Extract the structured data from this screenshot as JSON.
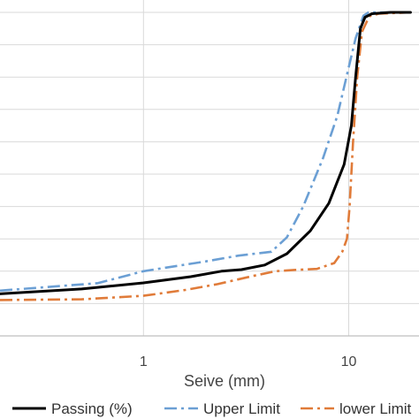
{
  "chart_data": {
    "type": "line",
    "title": "",
    "xlabel": "Seive (mm)",
    "ylabel": "",
    "x_scale": "log",
    "xlim": [
      0.2,
      22
    ],
    "ylim": [
      0,
      100
    ],
    "x_ticks": [
      {
        "value": 1,
        "label": "1"
      },
      {
        "value": 10,
        "label": "10"
      }
    ],
    "grid": true,
    "legend_position": "bottom",
    "series": [
      {
        "name": "Passing (%)",
        "color": "#000000",
        "style": "solid",
        "points": [
          [
            0.2,
            13
          ],
          [
            0.5,
            14.5
          ],
          [
            1,
            16.4
          ],
          [
            1.7,
            18.3
          ],
          [
            2.4,
            20
          ],
          [
            3,
            20.5
          ],
          [
            3.9,
            21.9
          ],
          [
            5,
            25.4
          ],
          [
            6.5,
            32.5
          ],
          [
            8,
            41
          ],
          [
            9.5,
            53
          ],
          [
            10.3,
            65
          ],
          [
            10.8,
            80
          ],
          [
            11.4,
            95
          ],
          [
            12,
            98.5
          ],
          [
            13,
            99.6
          ],
          [
            16,
            100
          ],
          [
            20,
            100
          ]
        ]
      },
      {
        "name": "Upper Limit",
        "color": "#6b9fd4",
        "style": "dash-dot",
        "points": [
          [
            0.2,
            14
          ],
          [
            0.6,
            16.3
          ],
          [
            1,
            20
          ],
          [
            2,
            23
          ],
          [
            2.9,
            24.8
          ],
          [
            4.2,
            26
          ],
          [
            5,
            30.5
          ],
          [
            6,
            40
          ],
          [
            7.5,
            55
          ],
          [
            8.8,
            68
          ],
          [
            10,
            83
          ],
          [
            10.8,
            92
          ],
          [
            11.8,
            99
          ],
          [
            12.5,
            100
          ],
          [
            20,
            100
          ]
        ]
      },
      {
        "name": "lower Limit",
        "color": "#e07b39",
        "style": "dash-dot",
        "points": [
          [
            0.2,
            11.1
          ],
          [
            0.5,
            11.3
          ],
          [
            1,
            12.4
          ],
          [
            1.6,
            14.2
          ],
          [
            2.3,
            16
          ],
          [
            3.4,
            18.5
          ],
          [
            4.4,
            20
          ],
          [
            5.5,
            20.4
          ],
          [
            7,
            20.7
          ],
          [
            8.5,
            22.5
          ],
          [
            9.3,
            26
          ],
          [
            9.8,
            30
          ],
          [
            10.1,
            40
          ],
          [
            10.5,
            60
          ],
          [
            11,
            80
          ],
          [
            11.6,
            94
          ],
          [
            12.6,
            98.8
          ],
          [
            14,
            99.6
          ],
          [
            20,
            100
          ]
        ]
      }
    ]
  }
}
